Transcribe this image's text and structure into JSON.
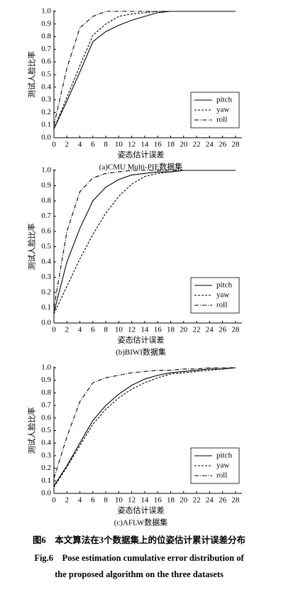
{
  "chart_data": [
    {
      "type": "line",
      "subtitle": "(a)CMU Multi-PIE数据集",
      "xlabel": "姿态估计误差",
      "ylabel": "测试人脸比率",
      "x": [
        0,
        2,
        4,
        6,
        8,
        10,
        12,
        14,
        16,
        18,
        20,
        22,
        24,
        26,
        28
      ],
      "xlim": [
        0,
        29
      ],
      "xticks": [
        0,
        2,
        4,
        6,
        8,
        10,
        12,
        14,
        16,
        18,
        20,
        22,
        24,
        26,
        28
      ],
      "ylim": [
        0,
        1
      ],
      "yticks": [
        {
          "value": 0,
          "label": "0.0"
        },
        0.1,
        0.2,
        0.3,
        0.4,
        0.5,
        0.6,
        0.7,
        0.8,
        0.9,
        {
          "value": 1,
          "label": "1.0"
        }
      ],
      "legend": "lower right",
      "series": [
        {
          "name": "pitch",
          "color": "#000000",
          "dash": "solid",
          "values": [
            0.07,
            0.29,
            0.52,
            0.76,
            0.84,
            0.89,
            0.93,
            0.96,
            0.99,
            1,
            1,
            1,
            1,
            1,
            1
          ]
        },
        {
          "name": "yaw",
          "color": "#000000",
          "dash": "dashed",
          "values": [
            0.07,
            0.32,
            0.57,
            0.81,
            0.9,
            0.96,
            0.98,
            0.99,
            1,
            1,
            1,
            1,
            1,
            1,
            1
          ]
        },
        {
          "name": "roll",
          "color": "#000000",
          "dash": "dashdot",
          "values": [
            0.1,
            0.55,
            0.87,
            0.96,
            1,
            1,
            1,
            1,
            1,
            1,
            1,
            1,
            1,
            1,
            1
          ]
        }
      ]
    },
    {
      "type": "line",
      "subtitle": "(b)BIWI数据集",
      "xlabel": "姿态估计误差",
      "ylabel": "测试人脸比率",
      "x": [
        0,
        2,
        4,
        6,
        8,
        10,
        12,
        14,
        16,
        18,
        20,
        22,
        24,
        26,
        28
      ],
      "xlim": [
        0,
        29
      ],
      "xticks": [
        0,
        2,
        4,
        6,
        8,
        10,
        12,
        14,
        16,
        18,
        20,
        22,
        24,
        26,
        28
      ],
      "ylim": [
        0,
        1
      ],
      "yticks": [
        {
          "value": 0,
          "label": "0.0"
        },
        0.1,
        0.2,
        0.3,
        0.4,
        0.5,
        0.6,
        0.7,
        0.8,
        0.9,
        {
          "value": 1,
          "label": "1.0"
        }
      ],
      "legend": "lower right",
      "series": [
        {
          "name": "pitch",
          "color": "#000000",
          "dash": "solid",
          "values": [
            0.07,
            0.4,
            0.62,
            0.8,
            0.89,
            0.94,
            0.97,
            0.98,
            0.99,
            0.99,
            1,
            1,
            1,
            1,
            1
          ]
        },
        {
          "name": "yaw",
          "color": "#000000",
          "dash": "dashed",
          "values": [
            0.06,
            0.24,
            0.42,
            0.58,
            0.72,
            0.83,
            0.91,
            0.96,
            0.98,
            0.99,
            1,
            1,
            1,
            1,
            1
          ]
        },
        {
          "name": "roll",
          "color": "#000000",
          "dash": "dashdot",
          "values": [
            0.1,
            0.6,
            0.86,
            0.95,
            0.98,
            0.99,
            1,
            1,
            1,
            1,
            1,
            1,
            1,
            1,
            1
          ]
        }
      ]
    },
    {
      "type": "line",
      "subtitle": "(c)AFLW数据集",
      "xlabel": "姿态估计误差",
      "ylabel": "测试人脸比率",
      "x": [
        0,
        2,
        4,
        6,
        8,
        10,
        12,
        14,
        16,
        18,
        20,
        22,
        24,
        26,
        28
      ],
      "xlim": [
        0,
        29
      ],
      "xticks": [
        0,
        2,
        4,
        6,
        8,
        10,
        12,
        14,
        16,
        18,
        20,
        22,
        24,
        26,
        28
      ],
      "ylim": [
        0,
        1
      ],
      "yticks": [
        {
          "value": 0,
          "label": "0.0"
        },
        0.1,
        0.2,
        0.3,
        0.4,
        0.5,
        0.6,
        0.7,
        0.8,
        0.9,
        {
          "value": 1,
          "label": "1.0"
        }
      ],
      "legend": "lower right",
      "series": [
        {
          "name": "pitch",
          "color": "#000000",
          "dash": "solid",
          "values": [
            0.06,
            0.22,
            0.4,
            0.58,
            0.7,
            0.79,
            0.86,
            0.91,
            0.94,
            0.96,
            0.97,
            0.98,
            0.99,
            0.99,
            1
          ]
        },
        {
          "name": "yaw",
          "color": "#000000",
          "dash": "dashed",
          "values": [
            0.05,
            0.21,
            0.38,
            0.55,
            0.67,
            0.76,
            0.83,
            0.88,
            0.92,
            0.95,
            0.96,
            0.97,
            0.98,
            0.99,
            1
          ]
        },
        {
          "name": "roll",
          "color": "#000000",
          "dash": "dashdot",
          "values": [
            0.12,
            0.45,
            0.73,
            0.88,
            0.92,
            0.94,
            0.96,
            0.97,
            0.98,
            0.98,
            0.99,
            0.99,
            1,
            1,
            1
          ]
        }
      ]
    }
  ],
  "caption": {
    "cn": "图6　本文算法在3个数据集上的位姿估计累计误差分布",
    "en_line1": "Fig.6　Pose estimation cumulative error distribution of",
    "en_line2": "the proposed algorithm on the three datasets"
  }
}
